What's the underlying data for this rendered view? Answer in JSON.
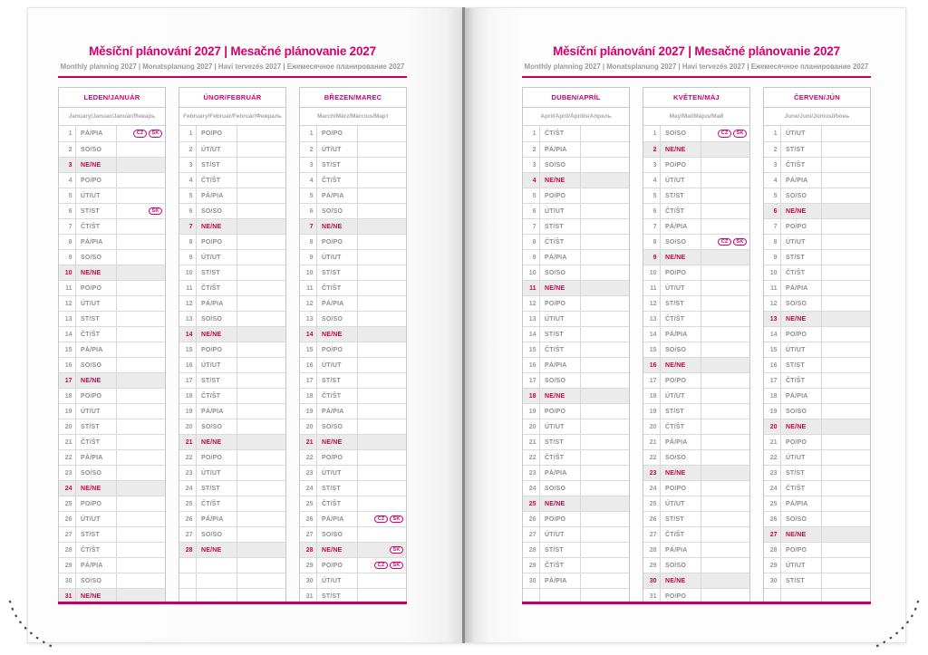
{
  "header": {
    "title": "Měsíční plánování 2027 | Mesačné plánovanie 2027",
    "subtitle": "Monthly planning 2027 | Monatsplanung 2027 | Havi tervezés 2027 | Ежемесячное планирование 2027"
  },
  "accent_color": "#d5006c",
  "sunday_text_color": "#c5074b",
  "sunday_row_background": "#ebebeb",
  "holiday_badge_labels": [
    "CZ",
    "SK"
  ],
  "months": [
    {
      "name": "LEDEN/JANUÁR",
      "subtitle": "January/Januar/Január/Январь",
      "days": [
        [
          1,
          "PÁ/PIA",
          [
            "CZ",
            "SK"
          ]
        ],
        [
          2,
          "SO/SO"
        ],
        [
          3,
          "NE/NE"
        ],
        [
          4,
          "PO/PO"
        ],
        [
          5,
          "ÚT/UT"
        ],
        [
          6,
          "ST/ST",
          [
            "SK"
          ]
        ],
        [
          7,
          "ČT/ŠT"
        ],
        [
          8,
          "PÁ/PIA"
        ],
        [
          9,
          "SO/SO"
        ],
        [
          10,
          "NE/NE"
        ],
        [
          11,
          "PO/PO"
        ],
        [
          12,
          "ÚT/UT"
        ],
        [
          13,
          "ST/ST"
        ],
        [
          14,
          "ČT/ŠT"
        ],
        [
          15,
          "PÁ/PIA"
        ],
        [
          16,
          "SO/SO"
        ],
        [
          17,
          "NE/NE"
        ],
        [
          18,
          "PO/PO"
        ],
        [
          19,
          "ÚT/UT"
        ],
        [
          20,
          "ST/ST"
        ],
        [
          21,
          "ČT/ŠT"
        ],
        [
          22,
          "PÁ/PIA"
        ],
        [
          23,
          "SO/SO"
        ],
        [
          24,
          "NE/NE"
        ],
        [
          25,
          "PO/PO"
        ],
        [
          26,
          "ÚT/UT"
        ],
        [
          27,
          "ST/ST"
        ],
        [
          28,
          "ČT/ŠT"
        ],
        [
          29,
          "PÁ/PIA"
        ],
        [
          30,
          "SO/SO"
        ],
        [
          31,
          "NE/NE"
        ]
      ]
    },
    {
      "name": "ÚNOR/FEBRUÁR",
      "subtitle": "February/Februar/Február/Февраль",
      "days": [
        [
          1,
          "PO/PO"
        ],
        [
          2,
          "ÚT/UT"
        ],
        [
          3,
          "ST/ST"
        ],
        [
          4,
          "ČT/ŠT"
        ],
        [
          5,
          "PÁ/PIA"
        ],
        [
          6,
          "SO/SO"
        ],
        [
          7,
          "NE/NE"
        ],
        [
          8,
          "PO/PO"
        ],
        [
          9,
          "ÚT/UT"
        ],
        [
          10,
          "ST/ST"
        ],
        [
          11,
          "ČT/ŠT"
        ],
        [
          12,
          "PÁ/PIA"
        ],
        [
          13,
          "SO/SO"
        ],
        [
          14,
          "NE/NE"
        ],
        [
          15,
          "PO/PO"
        ],
        [
          16,
          "ÚT/UT"
        ],
        [
          17,
          "ST/ST"
        ],
        [
          18,
          "ČT/ŠT"
        ],
        [
          19,
          "PÁ/PIA"
        ],
        [
          20,
          "SO/SO"
        ],
        [
          21,
          "NE/NE"
        ],
        [
          22,
          "PO/PO"
        ],
        [
          23,
          "ÚT/UT"
        ],
        [
          24,
          "ST/ST"
        ],
        [
          25,
          "ČT/ŠT"
        ],
        [
          26,
          "PÁ/PIA"
        ],
        [
          27,
          "SO/SO"
        ],
        [
          28,
          "NE/NE"
        ],
        [
          "",
          ""
        ],
        [
          "",
          ""
        ],
        [
          "",
          ""
        ]
      ]
    },
    {
      "name": "BŘEZEN/MAREC",
      "subtitle": "March/März/Március/Март",
      "days": [
        [
          1,
          "PO/PO"
        ],
        [
          2,
          "ÚT/UT"
        ],
        [
          3,
          "ST/ST"
        ],
        [
          4,
          "ČT/ŠT"
        ],
        [
          5,
          "PÁ/PIA"
        ],
        [
          6,
          "SO/SO"
        ],
        [
          7,
          "NE/NE"
        ],
        [
          8,
          "PO/PO"
        ],
        [
          9,
          "ÚT/UT"
        ],
        [
          10,
          "ST/ST"
        ],
        [
          11,
          "ČT/ŠT"
        ],
        [
          12,
          "PÁ/PIA"
        ],
        [
          13,
          "SO/SO"
        ],
        [
          14,
          "NE/NE"
        ],
        [
          15,
          "PO/PO"
        ],
        [
          16,
          "ÚT/UT"
        ],
        [
          17,
          "ST/ST"
        ],
        [
          18,
          "ČT/ŠT"
        ],
        [
          19,
          "PÁ/PIA"
        ],
        [
          20,
          "SO/SO"
        ],
        [
          21,
          "NE/NE"
        ],
        [
          22,
          "PO/PO"
        ],
        [
          23,
          "ÚT/UT"
        ],
        [
          24,
          "ST/ST"
        ],
        [
          25,
          "ČT/ŠT"
        ],
        [
          26,
          "PÁ/PIA",
          [
            "CZ",
            "SK"
          ]
        ],
        [
          27,
          "SO/SO"
        ],
        [
          28,
          "NE/NE",
          [
            "SK"
          ]
        ],
        [
          29,
          "PO/PO",
          [
            "CZ",
            "SK"
          ]
        ],
        [
          30,
          "ÚT/UT"
        ],
        [
          31,
          "ST/ST"
        ]
      ]
    },
    {
      "name": "DUBEN/APRÍL",
      "subtitle": "April/April/Április/Апрель",
      "days": [
        [
          1,
          "ČT/ŠT"
        ],
        [
          2,
          "PÁ/PIA"
        ],
        [
          3,
          "SO/SO"
        ],
        [
          4,
          "NE/NE"
        ],
        [
          5,
          "PO/PO"
        ],
        [
          6,
          "ÚT/UT"
        ],
        [
          7,
          "ST/ST"
        ],
        [
          8,
          "ČT/ŠT"
        ],
        [
          9,
          "PÁ/PIA"
        ],
        [
          10,
          "SO/SO"
        ],
        [
          11,
          "NE/NE"
        ],
        [
          12,
          "PO/PO"
        ],
        [
          13,
          "ÚT/UT"
        ],
        [
          14,
          "ST/ST"
        ],
        [
          15,
          "ČT/ŠT"
        ],
        [
          16,
          "PÁ/PIA"
        ],
        [
          17,
          "SO/SO"
        ],
        [
          18,
          "NE/NE"
        ],
        [
          19,
          "PO/PO"
        ],
        [
          20,
          "ÚT/UT"
        ],
        [
          21,
          "ST/ST"
        ],
        [
          22,
          "ČT/ŠT"
        ],
        [
          23,
          "PÁ/PIA"
        ],
        [
          24,
          "SO/SO"
        ],
        [
          25,
          "NE/NE"
        ],
        [
          26,
          "PO/PO"
        ],
        [
          27,
          "ÚT/UT"
        ],
        [
          28,
          "ST/ST"
        ],
        [
          29,
          "ČT/ŠT"
        ],
        [
          30,
          "PÁ/PIA"
        ],
        [
          "",
          ""
        ]
      ]
    },
    {
      "name": "KVĚTEN/MÁJ",
      "subtitle": "May/Mai/Május/Май",
      "days": [
        [
          1,
          "SO/SO",
          [
            "CZ",
            "SK"
          ]
        ],
        [
          2,
          "NE/NE"
        ],
        [
          3,
          "PO/PO"
        ],
        [
          4,
          "ÚT/UT"
        ],
        [
          5,
          "ST/ST"
        ],
        [
          6,
          "ČT/ŠT"
        ],
        [
          7,
          "PÁ/PIA"
        ],
        [
          8,
          "SO/SO",
          [
            "CZ",
            "SK"
          ]
        ],
        [
          9,
          "NE/NE"
        ],
        [
          10,
          "PO/PO"
        ],
        [
          11,
          "ÚT/UT"
        ],
        [
          12,
          "ST/ST"
        ],
        [
          13,
          "ČT/ŠT"
        ],
        [
          14,
          "PÁ/PIA"
        ],
        [
          15,
          "SO/SO"
        ],
        [
          16,
          "NE/NE"
        ],
        [
          17,
          "PO/PO"
        ],
        [
          18,
          "ÚT/UT"
        ],
        [
          19,
          "ST/ST"
        ],
        [
          20,
          "ČT/ŠT"
        ],
        [
          21,
          "PÁ/PIA"
        ],
        [
          22,
          "SO/SO"
        ],
        [
          23,
          "NE/NE"
        ],
        [
          24,
          "PO/PO"
        ],
        [
          25,
          "ÚT/UT"
        ],
        [
          26,
          "ST/ST"
        ],
        [
          27,
          "ČT/ŠT"
        ],
        [
          28,
          "PÁ/PIA"
        ],
        [
          29,
          "SO/SO"
        ],
        [
          30,
          "NE/NE"
        ],
        [
          31,
          "PO/PO"
        ]
      ]
    },
    {
      "name": "ČERVEN/JÚN",
      "subtitle": "June/Juni/Június/Июнь",
      "days": [
        [
          1,
          "ÚT/UT"
        ],
        [
          2,
          "ST/ST"
        ],
        [
          3,
          "ČT/ŠT"
        ],
        [
          4,
          "PÁ/PIA"
        ],
        [
          5,
          "SO/SO"
        ],
        [
          6,
          "NE/NE"
        ],
        [
          7,
          "PO/PO"
        ],
        [
          8,
          "ÚT/UT"
        ],
        [
          9,
          "ST/ST"
        ],
        [
          10,
          "ČT/ŠT"
        ],
        [
          11,
          "PÁ/PIA"
        ],
        [
          12,
          "SO/SO"
        ],
        [
          13,
          "NE/NE"
        ],
        [
          14,
          "PO/PO"
        ],
        [
          15,
          "ÚT/UT"
        ],
        [
          16,
          "ST/ST"
        ],
        [
          17,
          "ČT/ŠT"
        ],
        [
          18,
          "PÁ/PIA"
        ],
        [
          19,
          "SO/SO"
        ],
        [
          20,
          "NE/NE"
        ],
        [
          21,
          "PO/PO"
        ],
        [
          22,
          "ÚT/UT"
        ],
        [
          23,
          "ST/ST"
        ],
        [
          24,
          "ČT/ŠT"
        ],
        [
          25,
          "PÁ/PIA"
        ],
        [
          26,
          "SO/SO"
        ],
        [
          27,
          "NE/NE"
        ],
        [
          28,
          "PO/PO"
        ],
        [
          29,
          "ÚT/UT"
        ],
        [
          30,
          "ST/ST"
        ],
        [
          "",
          ""
        ]
      ]
    }
  ]
}
